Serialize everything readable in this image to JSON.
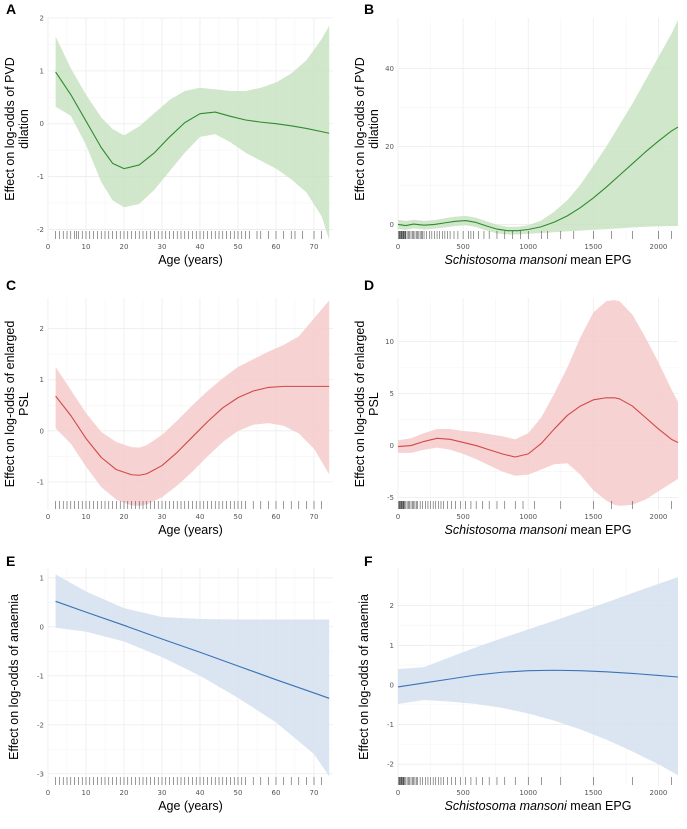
{
  "chart_data": [
    {
      "panel": "A",
      "type": "line",
      "xlabel": "Age (years)",
      "ylabel_lines": [
        "Effect on log-odds of PVD",
        "dilation"
      ],
      "xlim": [
        0,
        75
      ],
      "ylim": [
        -2.2,
        2
      ],
      "xticks": [
        0,
        10,
        20,
        30,
        40,
        50,
        60,
        70
      ],
      "yticks": [
        -2,
        -1,
        0,
        1,
        2
      ],
      "color": "#2e8b2e",
      "fill": "#c9e3c2",
      "x": [
        2,
        6,
        10,
        14,
        17,
        20,
        24,
        28,
        32,
        36,
        40,
        44,
        48,
        52,
        56,
        60,
        64,
        68,
        72,
        74
      ],
      "y": [
        0.98,
        0.55,
        0.05,
        -0.45,
        -0.75,
        -0.85,
        -0.78,
        -0.55,
        -0.25,
        0.02,
        0.19,
        0.22,
        0.14,
        0.07,
        0.03,
        0.0,
        -0.04,
        -0.09,
        -0.15,
        -0.18
      ],
      "lower": [
        0.32,
        0.15,
        -0.4,
        -1.1,
        -1.45,
        -1.58,
        -1.52,
        -1.25,
        -0.9,
        -0.55,
        -0.25,
        -0.2,
        -0.35,
        -0.55,
        -0.7,
        -0.85,
        -1.05,
        -1.3,
        -1.75,
        -2.2
      ],
      "upper": [
        1.65,
        1.05,
        0.55,
        0.12,
        -0.1,
        -0.22,
        -0.05,
        0.2,
        0.45,
        0.62,
        0.68,
        0.65,
        0.62,
        0.62,
        0.68,
        0.78,
        0.95,
        1.2,
        1.6,
        1.85
      ],
      "rug": [
        2,
        3,
        4,
        5,
        6,
        7,
        7.5,
        8,
        9,
        10,
        11,
        12,
        13,
        14,
        15,
        16,
        17,
        18,
        19,
        20,
        21,
        22,
        23,
        24,
        25,
        26,
        27,
        28,
        29,
        30,
        31,
        32,
        33,
        34,
        35,
        36,
        37,
        38,
        39,
        40,
        41,
        42,
        43,
        44,
        45,
        46,
        47,
        48,
        49,
        50,
        51,
        52,
        53,
        55,
        56,
        58,
        60,
        62,
        64,
        65,
        67,
        70,
        72
      ]
    },
    {
      "panel": "B",
      "type": "line",
      "xlabel_italic": "Schistosoma mansoni",
      "xlabel_rest": " mean EPG",
      "ylabel_lines": [
        "Effect on log-odds of PVD",
        "dilation"
      ],
      "xlim": [
        0,
        2150
      ],
      "ylim": [
        -4,
        53
      ],
      "xticks": [
        0,
        500,
        1000,
        1500,
        2000
      ],
      "yticks": [
        0,
        20,
        40
      ],
      "color": "#2e8b2e",
      "fill": "#c9e3c2",
      "x": [
        0,
        60,
        120,
        200,
        280,
        360,
        440,
        520,
        600,
        680,
        760,
        840,
        920,
        1000,
        1100,
        1200,
        1300,
        1400,
        1500,
        1600,
        1700,
        1800,
        1900,
        2000,
        2100,
        2150
      ],
      "y": [
        0,
        -0.3,
        0.1,
        -0.2,
        0.0,
        0.4,
        0.8,
        1.0,
        0.5,
        -0.4,
        -1.2,
        -1.6,
        -1.6,
        -1.3,
        -0.6,
        0.6,
        2.2,
        4.3,
        6.8,
        9.6,
        12.6,
        15.6,
        18.6,
        21.4,
        24.0,
        25.0
      ],
      "lower": [
        -1.2,
        -1.4,
        -1.0,
        -1.3,
        -1.1,
        -0.8,
        -0.4,
        -0.2,
        -0.7,
        -1.6,
        -2.3,
        -2.6,
        -2.6,
        -2.4,
        -2.2,
        -2.0,
        -1.8,
        -1.6,
        -1.4,
        -1.2,
        -1.0,
        -0.8,
        -0.6,
        -0.5,
        -0.4,
        -0.4
      ],
      "upper": [
        1.2,
        0.9,
        1.2,
        0.9,
        1.1,
        1.6,
        2.0,
        2.2,
        1.7,
        0.8,
        -0.1,
        -0.6,
        -0.6,
        -0.2,
        1.0,
        3.3,
        6.2,
        10.2,
        15.0,
        20.0,
        25.5,
        31.0,
        37.0,
        43.0,
        49.0,
        52.5
      ],
      "rug": [
        5,
        10,
        15,
        20,
        25,
        30,
        35,
        40,
        45,
        50,
        55,
        60,
        70,
        80,
        90,
        100,
        110,
        120,
        130,
        140,
        150,
        160,
        170,
        180,
        190,
        200,
        220,
        240,
        260,
        280,
        300,
        320,
        340,
        360,
        380,
        400,
        430,
        460,
        500,
        540,
        560,
        580,
        620,
        660,
        700,
        760,
        820,
        880,
        940,
        1000,
        1100,
        1150,
        1250,
        1350,
        1500,
        1640,
        1800,
        2000,
        2100
      ]
    },
    {
      "panel": "C",
      "type": "line",
      "xlabel": "Age (years)",
      "ylabel_lines": [
        "Effect on log-odds of enlarged",
        "PSL"
      ],
      "xlim": [
        0,
        75
      ],
      "ylim": [
        -1.55,
        2.6
      ],
      "xticks": [
        0,
        10,
        20,
        30,
        40,
        50,
        60,
        70
      ],
      "yticks": [
        -1,
        0,
        1,
        2
      ],
      "color": "#d24848",
      "fill": "#f4caca",
      "x": [
        2,
        6,
        10,
        14,
        18,
        22,
        24,
        26,
        30,
        34,
        38,
        42,
        46,
        50,
        54,
        58,
        62,
        66,
        70,
        74
      ],
      "y": [
        0.68,
        0.3,
        -0.15,
        -0.52,
        -0.76,
        -0.86,
        -0.87,
        -0.84,
        -0.68,
        -0.42,
        -0.12,
        0.18,
        0.45,
        0.65,
        0.78,
        0.85,
        0.87,
        0.87,
        0.87,
        0.87
      ],
      "lower": [
        0.05,
        -0.25,
        -0.7,
        -1.1,
        -1.35,
        -1.46,
        -1.47,
        -1.44,
        -1.3,
        -1.07,
        -0.8,
        -0.5,
        -0.22,
        0.0,
        0.12,
        0.15,
        0.1,
        -0.05,
        -0.35,
        -0.85
      ],
      "upper": [
        1.25,
        0.8,
        0.35,
        -0.02,
        -0.22,
        -0.32,
        -0.33,
        -0.28,
        -0.08,
        0.2,
        0.5,
        0.78,
        1.03,
        1.25,
        1.4,
        1.55,
        1.68,
        1.85,
        2.2,
        2.55
      ],
      "rug": [
        2,
        3,
        4,
        5,
        6,
        7,
        8,
        9,
        10,
        11,
        12,
        13,
        14,
        15,
        16,
        17,
        18,
        19,
        20,
        21,
        22,
        23,
        24,
        25,
        26,
        27,
        28,
        29,
        30,
        31,
        32,
        33,
        34,
        35,
        36,
        37,
        38,
        39,
        40,
        41,
        42,
        43,
        44,
        45,
        46,
        47,
        48,
        49,
        50,
        51,
        52,
        54,
        56,
        58,
        60,
        62,
        64,
        66,
        68,
        70,
        72
      ]
    },
    {
      "panel": "D",
      "type": "line",
      "xlabel_italic": "Schistosoma mansoni",
      "xlabel_rest": " mean EPG",
      "ylabel_lines": [
        "Effect on log-odds of enlarged",
        "PSL"
      ],
      "xlim": [
        0,
        2150
      ],
      "ylim": [
        -6.2,
        14.2
      ],
      "xticks": [
        0,
        500,
        1000,
        1500,
        2000
      ],
      "yticks": [
        -5,
        0,
        5,
        10
      ],
      "color": "#d24848",
      "fill": "#f4caca",
      "x": [
        0,
        100,
        200,
        300,
        400,
        500,
        600,
        700,
        800,
        900,
        1000,
        1100,
        1200,
        1300,
        1400,
        1500,
        1600,
        1660,
        1700,
        1800,
        1900,
        2000,
        2100,
        2150
      ],
      "y": [
        -0.1,
        0.0,
        0.4,
        0.7,
        0.6,
        0.3,
        0.0,
        -0.4,
        -0.8,
        -1.1,
        -0.8,
        0.2,
        1.6,
        2.9,
        3.8,
        4.4,
        4.6,
        4.6,
        4.5,
        3.8,
        2.7,
        1.6,
        0.6,
        0.3
      ],
      "lower": [
        -0.7,
        -0.7,
        -0.4,
        -0.2,
        -0.4,
        -0.8,
        -1.3,
        -1.9,
        -2.5,
        -2.9,
        -2.8,
        -2.3,
        -1.8,
        -1.7,
        -2.8,
        -4.3,
        -5.3,
        -5.7,
        -5.8,
        -5.7,
        -5.2,
        -4.4,
        -3.6,
        -3.2
      ],
      "upper": [
        0.5,
        0.7,
        1.2,
        1.6,
        1.6,
        1.4,
        1.3,
        1.1,
        0.9,
        0.6,
        1.2,
        2.7,
        5.0,
        7.5,
        10.4,
        12.8,
        13.9,
        14.0,
        13.9,
        12.6,
        10.4,
        8.0,
        5.4,
        4.2
      ],
      "rug": [
        5,
        10,
        15,
        20,
        25,
        30,
        35,
        40,
        45,
        50,
        60,
        70,
        80,
        90,
        100,
        110,
        120,
        130,
        140,
        150,
        170,
        190,
        210,
        230,
        250,
        270,
        290,
        310,
        330,
        350,
        380,
        410,
        440,
        480,
        520,
        560,
        600,
        650,
        700,
        760,
        820,
        900,
        960,
        1050,
        1250,
        1500,
        1640,
        1800,
        2100
      ]
    },
    {
      "panel": "E",
      "type": "line",
      "xlabel": "Age (years)",
      "ylabel_lines": [
        "Effect on log-odds of anaemia"
      ],
      "xlim": [
        0,
        75
      ],
      "ylim": [
        -3.25,
        1.2
      ],
      "xticks": [
        0,
        10,
        20,
        30,
        40,
        50,
        60,
        70
      ],
      "yticks": [
        -3,
        -2,
        -1,
        0,
        1
      ],
      "color": "#3a72b8",
      "fill": "#d4e0ef",
      "x": [
        2,
        10,
        20,
        30,
        40,
        50,
        60,
        70,
        74
      ],
      "y": [
        0.52,
        0.3,
        0.03,
        -0.25,
        -0.52,
        -0.8,
        -1.08,
        -1.35,
        -1.46
      ],
      "lower": [
        -0.02,
        -0.1,
        -0.3,
        -0.62,
        -1.0,
        -1.45,
        -1.95,
        -2.6,
        -3.05
      ],
      "upper": [
        1.07,
        0.72,
        0.38,
        0.2,
        0.16,
        0.15,
        0.15,
        0.15,
        0.15
      ],
      "rug": [
        2,
        3,
        4,
        5,
        6,
        7,
        8,
        9,
        10,
        11,
        12,
        13,
        14,
        15,
        16,
        17,
        18,
        19,
        20,
        21,
        22,
        23,
        24,
        25,
        26,
        27,
        28,
        29,
        30,
        31,
        32,
        33,
        34,
        35,
        36,
        37,
        38,
        39,
        40,
        41,
        42,
        43,
        44,
        45,
        46,
        47,
        48,
        49,
        50,
        51,
        52,
        54,
        56,
        58,
        60,
        62,
        64,
        66,
        68,
        70,
        72
      ]
    },
    {
      "panel": "F",
      "type": "line",
      "xlabel_italic": "Schistosoma mansoni",
      "xlabel_rest": " mean EPG",
      "ylabel_lines": [
        "Effect on log-odds of anaemia"
      ],
      "xlim": [
        0,
        2150
      ],
      "ylim": [
        -2.55,
        2.95
      ],
      "xticks": [
        0,
        500,
        1000,
        1500,
        2000
      ],
      "yticks": [
        -2,
        -1,
        0,
        1,
        2
      ],
      "color": "#3a72b8",
      "fill": "#d4e0ef",
      "x": [
        0,
        200,
        400,
        600,
        800,
        1000,
        1200,
        1400,
        1600,
        1800,
        2000,
        2150
      ],
      "y": [
        -0.05,
        0.05,
        0.15,
        0.25,
        0.32,
        0.36,
        0.37,
        0.36,
        0.33,
        0.29,
        0.24,
        0.2
      ],
      "lower": [
        -0.48,
        -0.38,
        -0.42,
        -0.48,
        -0.58,
        -0.72,
        -0.9,
        -1.12,
        -1.38,
        -1.68,
        -2.0,
        -2.28
      ],
      "upper": [
        0.4,
        0.45,
        0.7,
        0.95,
        1.18,
        1.4,
        1.62,
        1.85,
        2.08,
        2.32,
        2.55,
        2.72
      ],
      "rug": [
        5,
        10,
        15,
        20,
        25,
        30,
        35,
        40,
        45,
        50,
        60,
        70,
        80,
        90,
        100,
        110,
        120,
        130,
        140,
        150,
        170,
        190,
        210,
        230,
        250,
        270,
        290,
        310,
        330,
        350,
        380,
        410,
        440,
        480,
        520,
        560,
        600,
        650,
        700,
        760,
        820,
        900,
        1000,
        1100,
        1250,
        1500,
        1800,
        2100
      ]
    }
  ]
}
